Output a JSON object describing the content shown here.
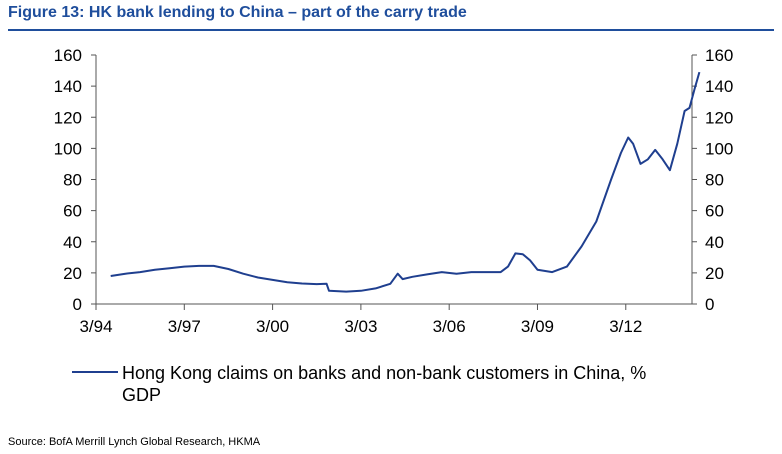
{
  "title": "Figure 13: HK bank lending to China – part of the carry trade",
  "source": "Source: BofA Merrill Lynch Global Research, HKMA",
  "chart_data": {
    "type": "line",
    "title": "Figure 13: HK bank lending to China – part of the carry trade",
    "xlabel": "",
    "ylabel": "",
    "x_ticks": [
      "3/94",
      "3/97",
      "3/00",
      "3/03",
      "3/06",
      "3/09",
      "3/12"
    ],
    "xlim": [
      "1994-03",
      "2014-06"
    ],
    "ylim": [
      0,
      160
    ],
    "y_ticks": [
      0,
      20,
      40,
      60,
      80,
      100,
      120,
      140,
      160
    ],
    "y_axes": [
      "left",
      "right"
    ],
    "grid": false,
    "legend_position": "bottom",
    "series": [
      {
        "name": "Hong Kong claims on banks and non-bank customers in China, % GDP",
        "legend_lines": [
          "Hong Kong claims on banks and non-bank customers in China, %",
          "GDP"
        ],
        "color": "#1f3f8f",
        "points": [
          [
            "1994-09",
            18
          ],
          [
            "1995-03",
            19.5
          ],
          [
            "1995-09",
            20.5
          ],
          [
            "1996-03",
            22
          ],
          [
            "1996-09",
            23
          ],
          [
            "1997-03",
            24
          ],
          [
            "1997-09",
            24.5
          ],
          [
            "1998-03",
            24.5
          ],
          [
            "1998-09",
            22.5
          ],
          [
            "1999-03",
            19.5
          ],
          [
            "1999-09",
            17
          ],
          [
            "2000-03",
            15.5
          ],
          [
            "2000-09",
            14
          ],
          [
            "2001-03",
            13.2
          ],
          [
            "2001-09",
            12.8
          ],
          [
            "2002-01",
            13
          ],
          [
            "2002-02",
            8.5
          ],
          [
            "2002-09",
            8
          ],
          [
            "2003-03",
            8.5
          ],
          [
            "2003-09",
            10
          ],
          [
            "2004-03",
            13
          ],
          [
            "2004-06",
            19.5
          ],
          [
            "2004-08",
            16
          ],
          [
            "2004-12",
            17.5
          ],
          [
            "2005-06",
            19
          ],
          [
            "2005-12",
            20.5
          ],
          [
            "2006-06",
            19.5
          ],
          [
            "2006-12",
            20.5
          ],
          [
            "2007-06",
            20.5
          ],
          [
            "2007-12",
            20.5
          ],
          [
            "2008-03",
            24
          ],
          [
            "2008-06",
            32.5
          ],
          [
            "2008-09",
            32
          ],
          [
            "2008-12",
            28
          ],
          [
            "2009-03",
            22
          ],
          [
            "2009-09",
            20.5
          ],
          [
            "2010-03",
            24
          ],
          [
            "2010-09",
            37
          ],
          [
            "2011-03",
            53
          ],
          [
            "2011-09",
            80
          ],
          [
            "2012-01",
            97
          ],
          [
            "2012-04",
            107
          ],
          [
            "2012-06",
            103
          ],
          [
            "2012-09",
            90
          ],
          [
            "2012-12",
            93
          ],
          [
            "2013-03",
            99
          ],
          [
            "2013-06",
            93
          ],
          [
            "2013-09",
            86
          ],
          [
            "2013-12",
            103
          ],
          [
            "2014-03",
            124
          ],
          [
            "2014-05",
            126
          ],
          [
            "2014-07",
            138
          ],
          [
            "2014-09",
            149
          ]
        ]
      }
    ]
  }
}
